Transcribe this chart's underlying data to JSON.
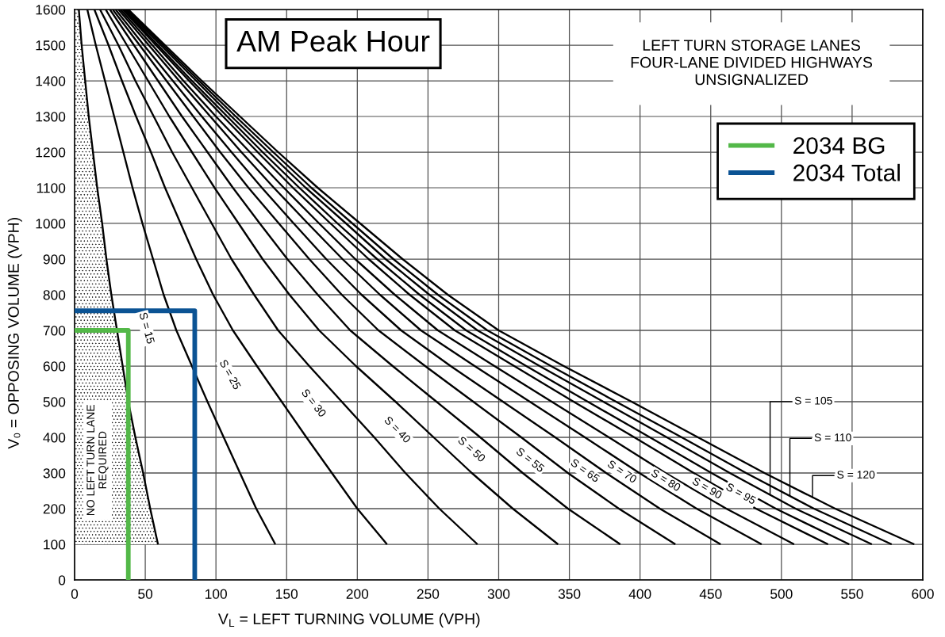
{
  "chart_data": {
    "type": "line",
    "title": "AM Peak Hour",
    "subtitle": "LEFT TURN STORAGE LANES\nFOUR-LANE DIVIDED HIGHWAYS\nUNSIGNALIZED",
    "xlabel": "V$_{L}$ = LEFT TURNING VOLUME (VPH)",
    "ylabel": "V₀ = OPPOSING VOLUME (VPH)",
    "xlim": [
      0,
      600
    ],
    "ylim": [
      0,
      1600
    ],
    "xticks": [
      0,
      50,
      100,
      150,
      200,
      250,
      300,
      350,
      400,
      450,
      500,
      550,
      600
    ],
    "yticks": [
      0,
      100,
      200,
      300,
      400,
      500,
      600,
      700,
      800,
      900,
      1000,
      1100,
      1200,
      1300,
      1400,
      1500,
      1600
    ],
    "grid": true,
    "legend": "top right",
    "series": [
      {
        "color": "#000000",
        "x": [
          3,
          5,
          7.5,
          10,
          13,
          16,
          19.5,
          22.5,
          26,
          30,
          34,
          38,
          43,
          48.5,
          53.5,
          59
        ],
        "values": [
          1600,
          1500,
          1400,
          1300,
          1200,
          1100,
          1000,
          900,
          800,
          700,
          600,
          500,
          400,
          300,
          200,
          100
        ]
      },
      {
        "color": "#000000",
        "x": [
          9,
          15,
          21.5,
          28,
          34.5,
          41,
          48,
          55.5,
          63,
          72,
          83,
          94,
          105.5,
          117,
          128.5,
          142
        ],
        "values": [
          1600,
          1500,
          1400,
          1300,
          1200,
          1100,
          1000,
          900,
          800,
          700,
          600,
          500,
          400,
          300,
          200,
          100
        ]
      },
      {
        "color": "#000000",
        "x": [
          14,
          24,
          33.5,
          43.5,
          54,
          64,
          75,
          86,
          98,
          112,
          129,
          146.5,
          164,
          182,
          200,
          221
        ],
        "values": [
          1600,
          1500,
          1400,
          1300,
          1200,
          1100,
          1000,
          900,
          800,
          700,
          600,
          500,
          400,
          300,
          200,
          100
        ]
      },
      {
        "color": "#000000",
        "x": [
          18,
          31,
          43,
          56,
          69,
          83,
          97,
          111,
          127,
          144,
          166,
          189,
          212,
          234,
          258,
          285
        ],
        "values": [
          1600,
          1500,
          1400,
          1300,
          1200,
          1100,
          1000,
          900,
          800,
          700,
          600,
          500,
          400,
          300,
          200,
          100
        ]
      },
      {
        "color": "#000000",
        "x": [
          22,
          37,
          52,
          67,
          83,
          99,
          116,
          133,
          152,
          173,
          199,
          227,
          254,
          281,
          310,
          342
        ],
        "values": [
          1600,
          1500,
          1400,
          1300,
          1200,
          1100,
          1000,
          900,
          800,
          700,
          600,
          500,
          400,
          300,
          200,
          100
        ]
      },
      {
        "color": "#000000",
        "x": [
          25,
          42,
          59,
          76,
          94,
          112,
          131,
          150.5,
          172,
          195,
          225,
          256,
          287,
          317,
          349,
          386
        ],
        "values": [
          1600,
          1500,
          1400,
          1300,
          1200,
          1100,
          1000,
          900,
          800,
          700,
          600,
          500,
          400,
          300,
          200,
          100
        ]
      },
      {
        "color": "#000000",
        "x": [
          27,
          46,
          65,
          84,
          103,
          123,
          144.5,
          166,
          189,
          215,
          248,
          282,
          316,
          349,
          385,
          425
        ],
        "values": [
          1600,
          1500,
          1400,
          1300,
          1200,
          1100,
          1000,
          900,
          800,
          700,
          600,
          500,
          400,
          300,
          200,
          100
        ]
      },
      {
        "color": "#000000",
        "x": [
          29,
          49,
          69.5,
          90,
          111,
          132.5,
          155,
          178,
          203,
          231,
          266,
          303,
          340,
          376,
          414,
          457
        ],
        "values": [
          1600,
          1500,
          1400,
          1300,
          1200,
          1100,
          1000,
          900,
          800,
          700,
          600,
          500,
          400,
          300,
          200,
          100
        ]
      },
      {
        "color": "#000000",
        "x": [
          31,
          52.5,
          74,
          96,
          118,
          141,
          165,
          189.5,
          216,
          245,
          283,
          322,
          361,
          399.5,
          440,
          486
        ],
        "values": [
          1600,
          1500,
          1400,
          1300,
          1200,
          1100,
          1000,
          900,
          800,
          700,
          600,
          500,
          400,
          300,
          200,
          100
        ]
      },
      {
        "color": "#000000",
        "x": [
          32.5,
          55,
          77,
          100,
          124,
          148,
          173,
          198.5,
          226.5,
          257,
          297,
          337.5,
          378,
          418,
          461,
          509
        ],
        "values": [
          1600,
          1500,
          1400,
          1300,
          1200,
          1100,
          1000,
          900,
          800,
          700,
          600,
          500,
          400,
          300,
          200,
          100
        ]
      },
      {
        "color": "#000000",
        "x": [
          34,
          57.5,
          81,
          105,
          129.5,
          154.5,
          181,
          208,
          237,
          269,
          311,
          353,
          396,
          438,
          482,
          533
        ],
        "values": [
          1600,
          1500,
          1400,
          1300,
          1200,
          1100,
          1000,
          900,
          800,
          700,
          600,
          500,
          400,
          300,
          200,
          100
        ]
      },
      {
        "color": "#000000",
        "x": [
          35,
          59,
          83,
          108,
          133,
          159,
          186,
          214,
          244,
          277,
          319.5,
          363,
          407,
          450.5,
          496,
          548
        ],
        "values": [
          1600,
          1500,
          1400,
          1300,
          1200,
          1100,
          1000,
          900,
          800,
          700,
          600,
          500,
          400,
          300,
          200,
          100
        ]
      },
      {
        "color": "#000000",
        "x": [
          36,
          61,
          86,
          111,
          137,
          163.5,
          192,
          220,
          251,
          285,
          329,
          374,
          419,
          463.5,
          510,
          564
        ],
        "values": [
          1600,
          1500,
          1400,
          1300,
          1200,
          1100,
          1000,
          900,
          800,
          700,
          600,
          500,
          400,
          300,
          200,
          100
        ]
      },
      {
        "color": "#000000",
        "x": [
          37,
          62.5,
          88,
          114,
          140.5,
          167.5,
          196.5,
          225.5,
          257,
          292,
          337,
          383,
          429.5,
          475,
          523,
          578
        ],
        "values": [
          1600,
          1500,
          1400,
          1300,
          1200,
          1100,
          1000,
          900,
          800,
          700,
          600,
          500,
          400,
          300,
          200,
          100
        ]
      },
      {
        "color": "#000000",
        "x": [
          38,
          64,
          90,
          117,
          144,
          172,
          202,
          232,
          264,
          300,
          346,
          394,
          441,
          488,
          538,
          594
        ],
        "values": [
          1600,
          1500,
          1400,
          1300,
          1200,
          1100,
          1000,
          900,
          800,
          700,
          600,
          500,
          400,
          300,
          200,
          100
        ]
      },
      {
        "name": "2034 BG",
        "color": "#53b848",
        "x": [
          0,
          38,
          38
        ],
        "values": [
          700,
          700,
          0
        ]
      },
      {
        "name": "2034 Total",
        "color": "#0b5394",
        "x": [
          0,
          85,
          85
        ],
        "values": [
          755,
          755,
          0
        ]
      }
    ],
    "annotations": [
      "NO LEFT TURN LANE\nREQUIRED",
      {
        "text": "S = 15",
        "x": 71.5,
        "y": 706
      },
      {
        "text": "S = 25",
        "x": 133,
        "y": 575
      },
      {
        "text": "S = 30",
        "x": 190,
        "y": 495
      },
      {
        "text": "S = 40",
        "x": 249,
        "y": 420
      },
      {
        "text": "S = 50",
        "x": 298,
        "y": 365
      },
      {
        "text": "S = 55",
        "x": 337,
        "y": 335
      },
      {
        "text": "S = 65",
        "x": 374,
        "y": 305
      },
      {
        "text": "S = 70",
        "x": 400,
        "y": 302
      },
      {
        "text": "S = 80",
        "x": 427,
        "y": 278
      },
      {
        "text": "S = 90",
        "x": 457,
        "y": 256
      },
      {
        "text": "S = 95",
        "x": 478,
        "y": 240
      },
      {
        "text": "S = 105",
        "x": 492,
        "y": 238
      },
      {
        "text": "S = 110",
        "x": 506,
        "y": 235
      },
      {
        "text": "S = 120",
        "x": 522,
        "y": 231
      }
    ]
  }
}
